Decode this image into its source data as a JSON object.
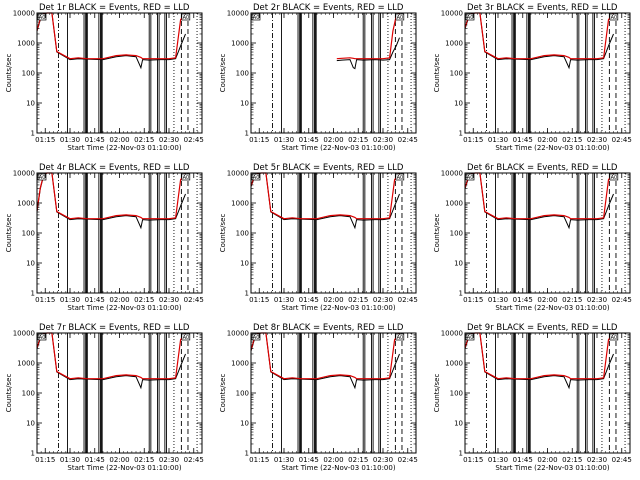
{
  "chart_data": {
    "type": "line",
    "layout": "3x3 grid of panels",
    "shared": {
      "xlabel": "Start Time (22-Nov-03 01:10:00)",
      "ylabel": "Counts/sec",
      "x_tick_labels": [
        "01:15",
        "01:30",
        "01:45",
        "02:00",
        "02:15",
        "02:30",
        "02:45"
      ],
      "x_tick_minutes": [
        5,
        20,
        35,
        50,
        65,
        80,
        95
      ],
      "xlim_minutes": [
        0,
        100
      ],
      "yscale": "log",
      "ylim": [
        1,
        10000
      ],
      "y_tick_labels": [
        "1",
        "10",
        "100",
        "1000",
        "10000"
      ],
      "y_tick_values": [
        1,
        10,
        100,
        1000,
        10000
      ],
      "grid": false,
      "series_colors": {
        "events": "#000000",
        "lld": "#dd0000"
      },
      "attenuator_box_label": "A0"
    },
    "panels": [
      {
        "title": "Det 1r BLACK = Events, RED = LLD",
        "events": {
          "x": [
            0,
            2,
            4,
            6,
            9,
            12,
            20,
            25,
            30,
            40,
            48,
            54,
            60,
            63,
            64,
            68,
            75,
            80,
            84,
            87,
            90
          ],
          "y": [
            2500,
            6000,
            9000,
            10000,
            10000,
            500,
            280,
            300,
            290,
            280,
            350,
            380,
            350,
            150,
            280,
            270,
            280,
            280,
            300,
            800,
            2000
          ]
        },
        "lld": {
          "x": [
            0,
            2,
            4,
            6,
            9,
            12,
            20,
            25,
            30,
            40,
            48,
            54,
            60,
            63,
            64,
            68,
            75,
            80,
            84,
            87,
            90
          ],
          "y": [
            2600,
            6500,
            9500,
            10000,
            10000,
            520,
            300,
            320,
            300,
            300,
            380,
            400,
            380,
            330,
            300,
            300,
            300,
            300,
            320,
            6000,
            10000
          ]
        }
      },
      {
        "title": "Det 2r BLACK = Events, RED = LLD",
        "events": {
          "x": [
            52,
            55,
            60,
            62,
            63,
            64,
            68,
            75,
            80,
            84,
            86,
            88,
            90
          ],
          "y": [
            260,
            270,
            280,
            150,
            140,
            280,
            270,
            280,
            270,
            280,
            500,
            800,
            1500
          ]
        },
        "lld": {
          "x": [
            52,
            55,
            60,
            62,
            63,
            64,
            68,
            75,
            80,
            84,
            86,
            88,
            90
          ],
          "y": [
            300,
            310,
            320,
            310,
            300,
            300,
            300,
            300,
            300,
            320,
            2500,
            8000,
            10000
          ]
        }
      },
      {
        "title": "Det 3r BLACK = Events, RED = LLD",
        "events": {
          "x": [
            0,
            2,
            4,
            6,
            9,
            12,
            20,
            25,
            30,
            40,
            48,
            54,
            60,
            63,
            64,
            68,
            75,
            80,
            84,
            87,
            90
          ],
          "y": [
            3000,
            6500,
            9000,
            10000,
            10000,
            500,
            280,
            300,
            290,
            280,
            350,
            380,
            350,
            150,
            280,
            270,
            280,
            280,
            300,
            800,
            2000
          ]
        },
        "lld": {
          "x": [
            0,
            2,
            4,
            6,
            9,
            12,
            20,
            25,
            30,
            40,
            48,
            54,
            60,
            63,
            64,
            68,
            75,
            80,
            84,
            87,
            90
          ],
          "y": [
            3200,
            7000,
            9500,
            10000,
            10000,
            520,
            300,
            320,
            300,
            300,
            380,
            400,
            380,
            330,
            300,
            300,
            300,
            300,
            320,
            6000,
            10000
          ]
        }
      },
      {
        "title": "Det 4r BLACK = Events, RED = LLD",
        "events": {
          "x": [
            0,
            2,
            4,
            6,
            9,
            12,
            20,
            25,
            30,
            40,
            48,
            54,
            60,
            63,
            64,
            68,
            75,
            80,
            84,
            87,
            90
          ],
          "y": [
            500,
            3000,
            8000,
            10000,
            10000,
            500,
            280,
            300,
            290,
            280,
            350,
            380,
            350,
            150,
            280,
            270,
            280,
            280,
            300,
            800,
            2000
          ]
        },
        "lld": {
          "x": [
            0,
            2,
            4,
            6,
            9,
            12,
            20,
            25,
            30,
            40,
            48,
            54,
            60,
            63,
            64,
            68,
            75,
            80,
            84,
            87,
            90
          ],
          "y": [
            550,
            3200,
            8500,
            10000,
            10000,
            520,
            300,
            320,
            300,
            300,
            380,
            400,
            380,
            330,
            300,
            300,
            300,
            300,
            320,
            6000,
            10000
          ]
        }
      },
      {
        "title": "Det 5r BLACK = Events, RED = LLD",
        "events": {
          "x": [
            0,
            2,
            4,
            6,
            9,
            12,
            20,
            25,
            30,
            40,
            48,
            54,
            60,
            63,
            64,
            68,
            75,
            80,
            84,
            87,
            90
          ],
          "y": [
            3500,
            7000,
            9000,
            10000,
            10000,
            500,
            280,
            300,
            290,
            280,
            350,
            380,
            350,
            150,
            280,
            270,
            280,
            280,
            300,
            800,
            2000
          ]
        },
        "lld": {
          "x": [
            0,
            2,
            4,
            6,
            9,
            12,
            20,
            25,
            30,
            40,
            48,
            54,
            60,
            63,
            64,
            68,
            75,
            80,
            84,
            87,
            90
          ],
          "y": [
            3700,
            7500,
            9500,
            10000,
            10000,
            520,
            300,
            320,
            300,
            300,
            380,
            400,
            380,
            330,
            300,
            300,
            300,
            300,
            320,
            6000,
            10000
          ]
        }
      },
      {
        "title": "Det 6r BLACK = Events, RED = LLD",
        "events": {
          "x": [
            0,
            2,
            4,
            6,
            9,
            12,
            20,
            25,
            30,
            40,
            48,
            54,
            60,
            63,
            64,
            68,
            75,
            80,
            84,
            87,
            90
          ],
          "y": [
            3000,
            6500,
            9000,
            10000,
            10000,
            500,
            280,
            300,
            290,
            280,
            350,
            380,
            350,
            150,
            280,
            270,
            280,
            280,
            300,
            800,
            2000
          ]
        },
        "lld": {
          "x": [
            0,
            2,
            4,
            6,
            9,
            12,
            20,
            25,
            30,
            40,
            48,
            54,
            60,
            63,
            64,
            68,
            75,
            80,
            84,
            87,
            90
          ],
          "y": [
            3200,
            7000,
            9500,
            10000,
            10000,
            520,
            300,
            320,
            300,
            300,
            380,
            400,
            380,
            330,
            300,
            300,
            300,
            300,
            320,
            6000,
            10000
          ]
        }
      },
      {
        "title": "Det 7r BLACK = Events, RED = LLD",
        "events": {
          "x": [
            0,
            2,
            4,
            6,
            9,
            12,
            20,
            25,
            30,
            40,
            48,
            54,
            60,
            63,
            64,
            68,
            75,
            80,
            84,
            87,
            90
          ],
          "y": [
            3000,
            6500,
            9000,
            10000,
            10000,
            500,
            280,
            300,
            290,
            280,
            350,
            380,
            350,
            150,
            280,
            270,
            280,
            280,
            300,
            800,
            2000
          ]
        },
        "lld": {
          "x": [
            0,
            2,
            4,
            6,
            9,
            12,
            20,
            25,
            30,
            40,
            48,
            54,
            60,
            63,
            64,
            68,
            75,
            80,
            84,
            87,
            90
          ],
          "y": [
            3200,
            7000,
            9500,
            10000,
            10000,
            520,
            300,
            320,
            300,
            300,
            380,
            400,
            380,
            330,
            300,
            300,
            300,
            300,
            320,
            6000,
            10000
          ]
        }
      },
      {
        "title": "Det 8r BLACK = Events, RED = LLD",
        "events": {
          "x": [
            0,
            2,
            4,
            6,
            9,
            12,
            20,
            25,
            30,
            40,
            48,
            54,
            60,
            63,
            64,
            68,
            75,
            80,
            84,
            87,
            90
          ],
          "y": [
            2500,
            6000,
            9000,
            10000,
            10000,
            500,
            280,
            300,
            290,
            280,
            350,
            380,
            350,
            150,
            280,
            270,
            280,
            280,
            300,
            800,
            2000
          ]
        },
        "lld": {
          "x": [
            0,
            2,
            4,
            6,
            9,
            12,
            20,
            25,
            30,
            40,
            48,
            54,
            60,
            63,
            64,
            68,
            75,
            80,
            84,
            87,
            90
          ],
          "y": [
            2700,
            6500,
            9500,
            10000,
            10000,
            520,
            300,
            320,
            300,
            300,
            380,
            400,
            380,
            330,
            300,
            300,
            300,
            300,
            320,
            6000,
            10000
          ]
        }
      },
      {
        "title": "Det 9r BLACK = Events, RED = LLD",
        "events": {
          "x": [
            0,
            2,
            4,
            6,
            9,
            12,
            20,
            25,
            30,
            40,
            48,
            54,
            60,
            63,
            64,
            68,
            75,
            80,
            84,
            87,
            90
          ],
          "y": [
            3000,
            6500,
            9000,
            10000,
            10000,
            500,
            280,
            300,
            290,
            280,
            350,
            380,
            350,
            150,
            280,
            270,
            280,
            280,
            300,
            800,
            2000
          ]
        },
        "lld": {
          "x": [
            0,
            2,
            4,
            6,
            9,
            12,
            20,
            25,
            30,
            40,
            48,
            54,
            60,
            63,
            64,
            68,
            75,
            80,
            84,
            87,
            90
          ],
          "y": [
            3200,
            7000,
            9500,
            10000,
            10000,
            520,
            300,
            320,
            300,
            300,
            380,
            400,
            380,
            330,
            300,
            300,
            300,
            300,
            320,
            6000,
            10000
          ]
        }
      }
    ],
    "vertical_markers": [
      {
        "style": "solid",
        "x": [
          18.5,
          28.5,
          29.5,
          30,
          30.5,
          37.5,
          38.5,
          39,
          39.5,
          68,
          69,
          73,
          74,
          77.5,
          78.5
        ]
      },
      {
        "style": "dash-dot",
        "x": [
          13
        ]
      },
      {
        "style": "dashed",
        "x": [
          87.5,
          91.5
        ]
      },
      {
        "style": "dotted",
        "x": [
          83,
          97
        ]
      }
    ]
  }
}
